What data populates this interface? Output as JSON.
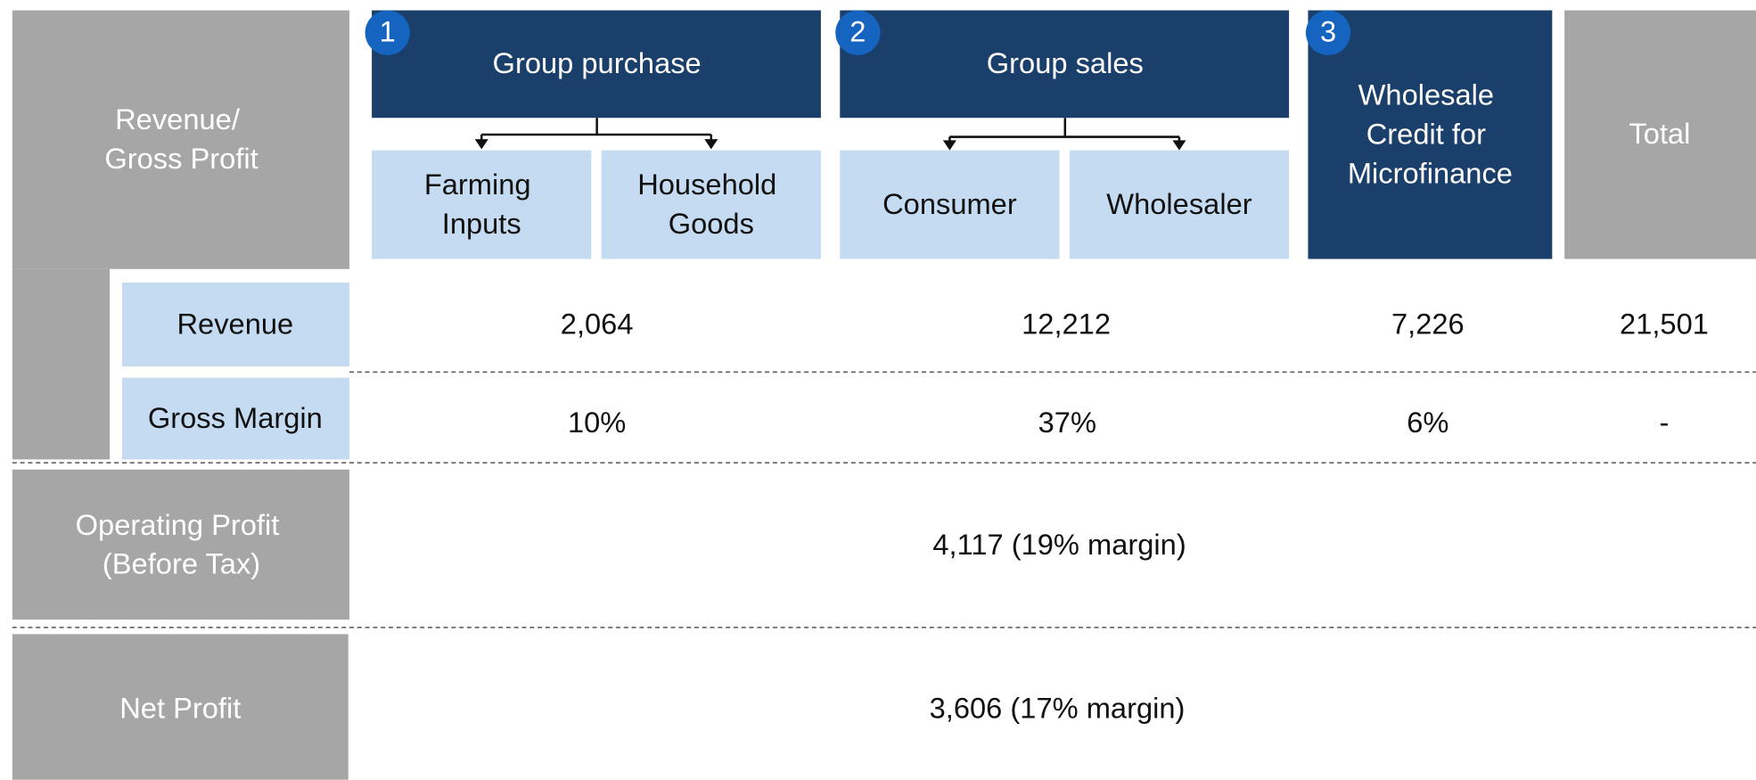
{
  "row_headers": {
    "revenue_gross_profit": [
      "Revenue/",
      "Gross Profit"
    ],
    "revenue": "Revenue",
    "gross_margin": "Gross Margin",
    "operating_profit": [
      "Operating Profit",
      "(Before Tax)"
    ],
    "net_profit": "Net Profit"
  },
  "segments": [
    {
      "number": "1",
      "title": "Group purchase",
      "subs": [
        [
          "Farming",
          "Inputs"
        ],
        [
          "Household",
          "Goods"
        ]
      ]
    },
    {
      "number": "2",
      "title": "Group sales",
      "subs": [
        [
          "Consumer"
        ],
        [
          "Wholesaler"
        ]
      ]
    },
    {
      "number": "3",
      "title": [
        "Wholesale",
        "Credit for",
        "Microfinance"
      ]
    }
  ],
  "total": "Total",
  "revenue": [
    "2,064",
    "12,212",
    "7,226",
    "21,501"
  ],
  "gross_margin": [
    "10%",
    "37%",
    "6%",
    "-"
  ],
  "operating_profit": "4,117 (19% margin)",
  "net_profit": "3,606 (17% margin)"
}
